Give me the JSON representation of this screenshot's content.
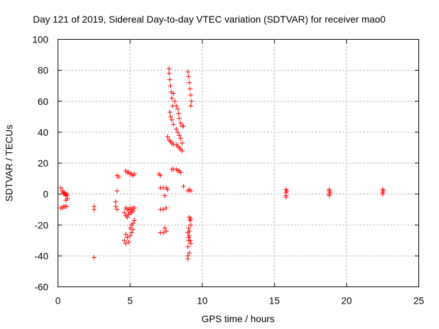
{
  "chart_data": {
    "type": "scatter",
    "title": "Day 121 of 2019, Sidereal Day-to-day VTEC variation (SDTVAR) for receiver mao0",
    "xlabel": "GPS time / hours",
    "ylabel": "SDTVAR / TECUs",
    "xlim": [
      0,
      25
    ],
    "ylim": [
      -60,
      100
    ],
    "xticks": [
      0,
      5,
      10,
      15,
      20,
      25
    ],
    "yticks": [
      -60,
      -40,
      -20,
      0,
      20,
      40,
      60,
      80,
      100
    ],
    "grid": true,
    "marker": "+",
    "color": "#ff0000",
    "series": [
      {
        "name": "SDTVAR",
        "points": [
          [
            0.2,
            4
          ],
          [
            0.3,
            2
          ],
          [
            0.35,
            1
          ],
          [
            0.4,
            0
          ],
          [
            0.45,
            1
          ],
          [
            0.5,
            0
          ],
          [
            0.55,
            -1
          ],
          [
            0.6,
            0
          ],
          [
            0.65,
            -1
          ],
          [
            0.3,
            -9
          ],
          [
            0.4,
            -8
          ],
          [
            0.5,
            -8
          ],
          [
            0.6,
            -8
          ],
          [
            0.55,
            -4
          ],
          [
            0.65,
            -3
          ],
          [
            0.2,
            -9
          ],
          [
            2.5,
            -8
          ],
          [
            2.5,
            -10
          ],
          [
            2.5,
            -41
          ],
          [
            4.0,
            -5
          ],
          [
            4.0,
            -8
          ],
          [
            4.1,
            -10
          ],
          [
            4.1,
            12
          ],
          [
            4.2,
            11
          ],
          [
            4.1,
            2
          ],
          [
            4.7,
            15
          ],
          [
            4.8,
            14
          ],
          [
            4.9,
            14
          ],
          [
            5.0,
            13
          ],
          [
            5.1,
            13
          ],
          [
            5.2,
            12
          ],
          [
            5.3,
            13
          ],
          [
            4.7,
            -9
          ],
          [
            4.8,
            -10
          ],
          [
            4.9,
            -10
          ],
          [
            5.0,
            -9
          ],
          [
            5.1,
            -10
          ],
          [
            5.2,
            -9
          ],
          [
            5.3,
            -9
          ],
          [
            4.6,
            -12
          ],
          [
            4.7,
            -14
          ],
          [
            4.8,
            -15
          ],
          [
            4.9,
            -13
          ],
          [
            5.0,
            -12
          ],
          [
            5.1,
            -12
          ],
          [
            5.2,
            -11
          ],
          [
            5.3,
            -17
          ],
          [
            5.2,
            -19
          ],
          [
            5.1,
            -20
          ],
          [
            5.0,
            -22
          ],
          [
            4.6,
            -30
          ],
          [
            4.7,
            -32
          ],
          [
            4.8,
            -28
          ],
          [
            4.9,
            -31
          ],
          [
            5.0,
            -27
          ],
          [
            5.1,
            -25
          ],
          [
            5.2,
            -23
          ],
          [
            4.7,
            -26
          ],
          [
            7.1,
            4
          ],
          [
            7.3,
            4
          ],
          [
            7.5,
            4
          ],
          [
            7.6,
            3
          ],
          [
            7.4,
            -1
          ],
          [
            7.0,
            13
          ],
          [
            7.1,
            12
          ],
          [
            7.1,
            -10
          ],
          [
            7.3,
            -10
          ],
          [
            7.5,
            -9
          ],
          [
            7.1,
            -25
          ],
          [
            7.3,
            -25
          ],
          [
            7.5,
            -24
          ],
          [
            7.4,
            -22
          ],
          [
            7.7,
            81
          ],
          [
            7.7,
            78
          ],
          [
            7.75,
            74
          ],
          [
            7.8,
            70
          ],
          [
            7.85,
            66
          ],
          [
            7.9,
            62
          ],
          [
            7.95,
            57
          ],
          [
            7.75,
            53
          ],
          [
            7.8,
            50
          ],
          [
            7.9,
            48
          ],
          [
            8.0,
            45
          ],
          [
            7.6,
            37
          ],
          [
            7.7,
            35
          ],
          [
            7.8,
            34
          ],
          [
            7.9,
            33
          ],
          [
            8.0,
            32
          ],
          [
            7.9,
            16
          ],
          [
            8.0,
            16
          ],
          [
            8.2,
            16
          ],
          [
            8.3,
            15
          ],
          [
            8.4,
            15
          ],
          [
            8.5,
            14
          ],
          [
            8.0,
            65
          ],
          [
            8.1,
            60
          ],
          [
            8.2,
            57
          ],
          [
            8.3,
            55
          ],
          [
            8.35,
            52
          ],
          [
            8.4,
            49
          ],
          [
            8.5,
            46
          ],
          [
            8.6,
            44
          ],
          [
            8.7,
            44
          ],
          [
            8.2,
            42
          ],
          [
            8.3,
            40
          ],
          [
            8.4,
            38
          ],
          [
            8.5,
            36
          ],
          [
            8.6,
            33
          ],
          [
            8.2,
            32
          ],
          [
            8.3,
            31
          ],
          [
            8.4,
            30
          ],
          [
            8.5,
            29
          ],
          [
            8.6,
            28
          ],
          [
            8.7,
            5
          ],
          [
            9.0,
            79
          ],
          [
            9.05,
            76
          ],
          [
            9.1,
            72
          ],
          [
            9.15,
            68
          ],
          [
            9.2,
            64
          ],
          [
            9.25,
            60
          ],
          [
            9.2,
            57
          ],
          [
            9.0,
            2
          ],
          [
            9.1,
            3
          ],
          [
            9.2,
            2
          ],
          [
            9.0,
            -40
          ],
          [
            9.0,
            -42
          ],
          [
            9.1,
            -38
          ],
          [
            9.1,
            -15
          ],
          [
            9.15,
            -17
          ],
          [
            9.2,
            -20
          ],
          [
            9.05,
            -22
          ],
          [
            9.0,
            -25
          ],
          [
            9.1,
            -27
          ],
          [
            9.15,
            -30
          ],
          [
            9.2,
            -32
          ],
          [
            9.0,
            -34
          ],
          [
            9.05,
            -30
          ],
          [
            9.1,
            -24
          ],
          [
            9.2,
            -16
          ],
          [
            9.05,
            -28
          ],
          [
            15.8,
            3
          ],
          [
            15.8,
            1
          ],
          [
            15.8,
            -1
          ],
          [
            15.8,
            -2
          ],
          [
            15.85,
            2
          ],
          [
            18.8,
            3
          ],
          [
            18.8,
            2
          ],
          [
            18.85,
            1
          ],
          [
            18.8,
            0
          ],
          [
            18.8,
            -1
          ],
          [
            22.5,
            3
          ],
          [
            22.5,
            1
          ],
          [
            22.5,
            0
          ],
          [
            22.55,
            2
          ]
        ]
      }
    ]
  }
}
